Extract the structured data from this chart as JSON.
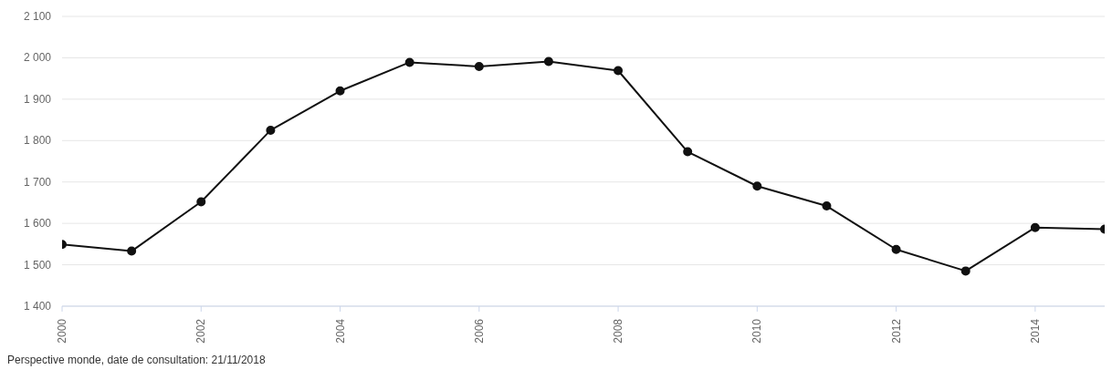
{
  "chart_data": {
    "type": "line",
    "x": [
      2000,
      2001,
      2002,
      2003,
      2004,
      2005,
      2006,
      2007,
      2008,
      2009,
      2010,
      2011,
      2012,
      2013,
      2014,
      2015
    ],
    "series": [
      {
        "color": "#111111",
        "values": [
          1549,
          1533,
          1652,
          1825,
          1920,
          1989,
          1979,
          1991,
          1969,
          1773,
          1690,
          1642,
          1537,
          1485,
          1590,
          1586
        ]
      }
    ],
    "xlim": [
      2000,
      2015
    ],
    "xticks": [
      2000,
      2002,
      2004,
      2006,
      2008,
      2010,
      2012,
      2014
    ],
    "ylim": [
      1400,
      2100
    ],
    "yticks": [
      {
        "value": 1400,
        "label": "1 400"
      },
      {
        "value": 1500,
        "label": "1 500"
      },
      {
        "value": 1600,
        "label": "1 600"
      },
      {
        "value": 1700,
        "label": "1 700"
      },
      {
        "value": 1800,
        "label": "1 800"
      },
      {
        "value": 1900,
        "label": "1 900"
      },
      {
        "value": 2000,
        "label": "2 000"
      },
      {
        "value": 2100,
        "label": "2 100"
      }
    ],
    "grid": "y",
    "legend": false,
    "marker": "circle",
    "line_style": "solid",
    "annotations": [
      "Perspective monde, date de consultation: 21/11/2018"
    ]
  }
}
